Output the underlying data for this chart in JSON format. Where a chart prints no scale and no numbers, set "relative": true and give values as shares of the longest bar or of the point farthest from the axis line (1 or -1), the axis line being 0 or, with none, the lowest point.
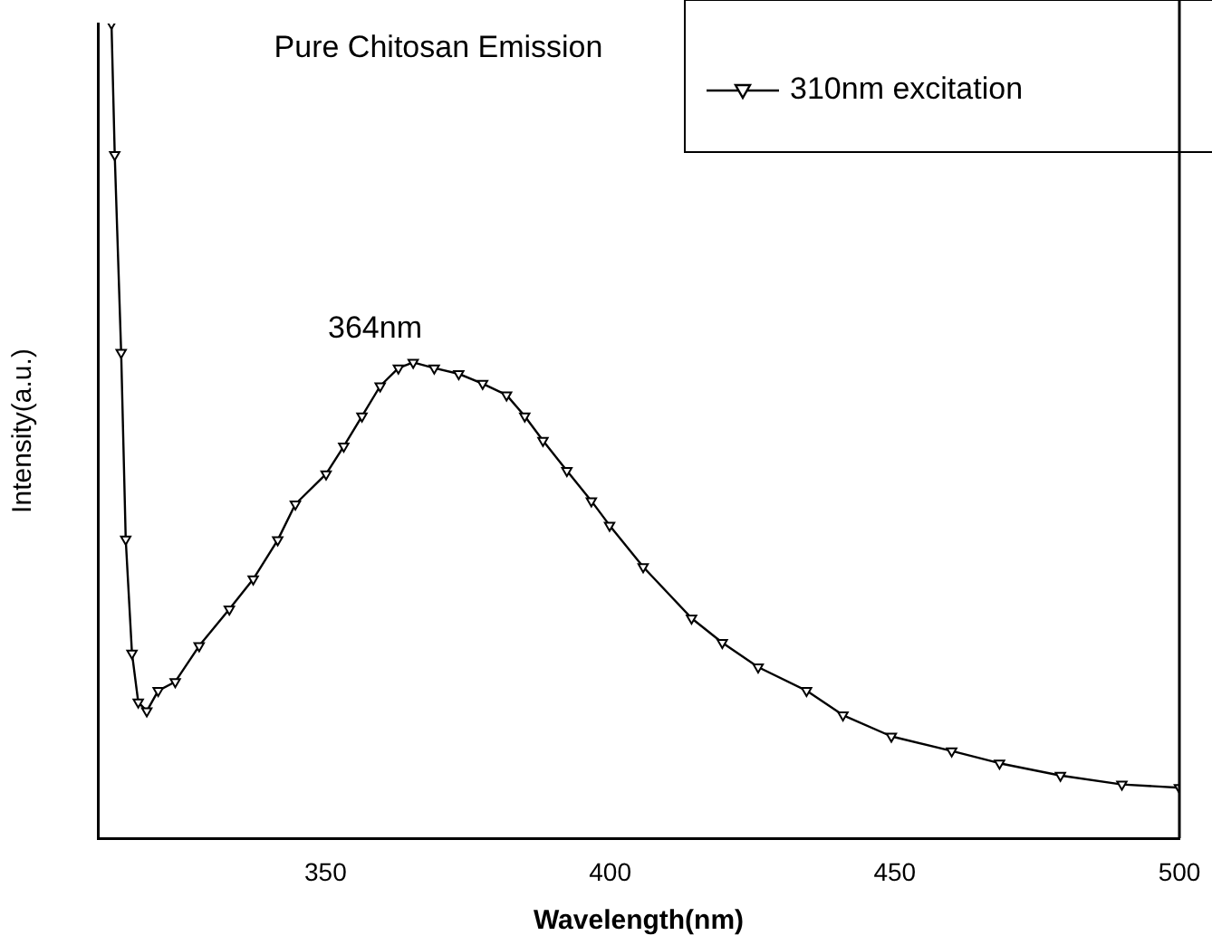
{
  "chart_data": {
    "type": "line",
    "title": "Pure Chitosan Emission",
    "xlabel": "Wavelength(nm)",
    "ylabel": "Intensity(a.u.)",
    "relative": true,
    "xlim": [
      310,
      500
    ],
    "xticks": [
      350,
      400,
      450,
      500
    ],
    "legend": "top right",
    "marker": "triangle",
    "line_style": "solid",
    "annotations": [
      "364nm"
    ],
    "x": [
      312.4,
      312.97,
      314.1,
      314.9,
      316.0,
      317.1,
      318.6,
      320.6,
      323.6,
      327.8,
      333.1,
      337.3,
      341.6,
      344.7,
      350.1,
      353.2,
      356.4,
      359.6,
      362.8,
      365.4,
      369.1,
      373.4,
      377.6,
      381.8,
      385.0,
      388.2,
      392.4,
      396.7,
      399.9,
      405.8,
      414.3,
      419.7,
      426.0,
      434.5,
      440.9,
      449.4,
      460.0,
      468.4,
      479.1,
      489.9,
      500
    ],
    "series": [
      {
        "name": "310nm excitation",
        "color": "#000000",
        "values": [
          1,
          0.839,
          0.596,
          0.367,
          0.227,
          0.167,
          0.156,
          0.181,
          0.192,
          0.236,
          0.281,
          0.318,
          0.366,
          0.41,
          0.447,
          0.481,
          0.518,
          0.555,
          0.577,
          0.584,
          0.577,
          0.57,
          0.558,
          0.544,
          0.518,
          0.488,
          0.451,
          0.414,
          0.384,
          0.333,
          0.27,
          0.24,
          0.21,
          0.181,
          0.151,
          0.125,
          0.107,
          0.092,
          0.077,
          0.066,
          0.062
        ]
      }
    ]
  }
}
